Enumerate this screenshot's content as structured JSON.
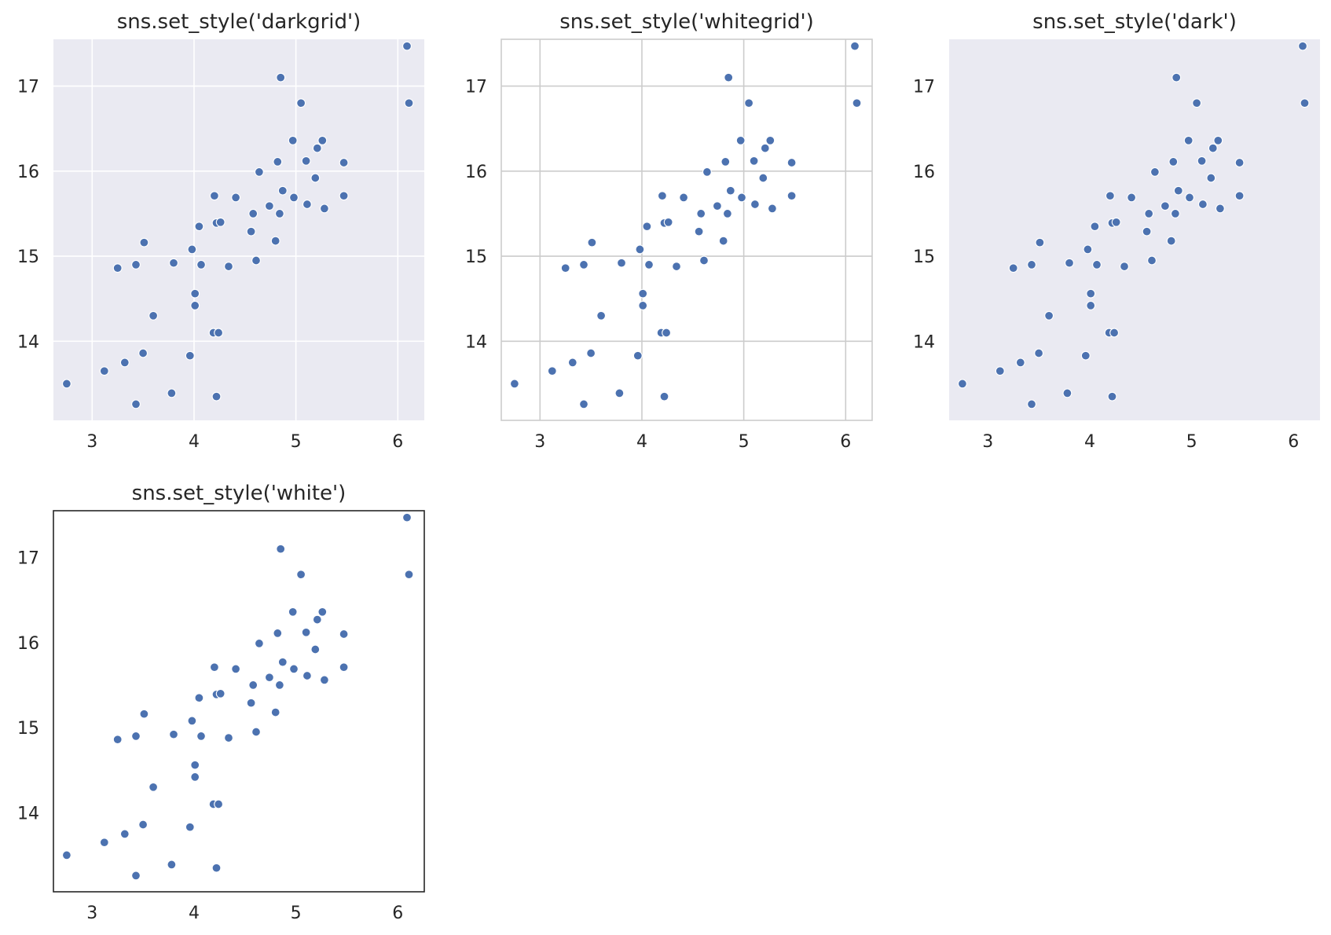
{
  "chart_data": [
    {
      "type": "scatter",
      "title": "sns.set_style('darkgrid')",
      "style": "darkgrid",
      "background": "#eaeaf2",
      "grid": true,
      "grid_color": "#ffffff",
      "spines": false,
      "point_color": "#4c72b0",
      "xlim": [
        2.62,
        6.26
      ],
      "ylim": [
        13.07,
        17.55
      ],
      "xticks": [
        3,
        4,
        5,
        6
      ],
      "yticks": [
        14,
        15,
        16,
        17
      ],
      "points": [
        [
          2.75,
          13.5
        ],
        [
          3.12,
          13.65
        ],
        [
          3.32,
          13.75
        ],
        [
          3.5,
          13.86
        ],
        [
          3.43,
          13.26
        ],
        [
          3.25,
          14.86
        ],
        [
          3.43,
          14.9
        ],
        [
          3.51,
          15.16
        ],
        [
          3.6,
          14.3
        ],
        [
          3.78,
          13.39
        ],
        [
          3.8,
          14.92
        ],
        [
          3.96,
          13.83
        ],
        [
          3.98,
          15.08
        ],
        [
          4.01,
          14.56
        ],
        [
          4.01,
          14.42
        ],
        [
          4.05,
          15.35
        ],
        [
          4.07,
          14.9
        ],
        [
          4.2,
          15.71
        ],
        [
          4.19,
          14.1
        ],
        [
          4.24,
          14.1
        ],
        [
          4.22,
          15.39
        ],
        [
          4.22,
          13.35
        ],
        [
          4.26,
          15.4
        ],
        [
          4.34,
          14.88
        ],
        [
          4.41,
          15.69
        ],
        [
          4.56,
          15.29
        ],
        [
          4.58,
          15.5
        ],
        [
          4.61,
          14.95
        ],
        [
          4.64,
          15.99
        ],
        [
          4.74,
          15.59
        ],
        [
          4.8,
          15.18
        ],
        [
          4.82,
          16.11
        ],
        [
          4.84,
          15.5
        ],
        [
          4.87,
          15.77
        ],
        [
          4.85,
          17.1
        ],
        [
          4.97,
          16.36
        ],
        [
          4.98,
          15.69
        ],
        [
          5.05,
          16.8
        ],
        [
          5.1,
          16.12
        ],
        [
          5.11,
          15.61
        ],
        [
          5.19,
          15.92
        ],
        [
          5.21,
          16.27
        ],
        [
          5.26,
          16.36
        ],
        [
          5.28,
          15.56
        ],
        [
          5.47,
          16.1
        ],
        [
          5.47,
          15.71
        ],
        [
          6.09,
          17.47
        ],
        [
          6.11,
          16.8
        ]
      ]
    },
    {
      "type": "scatter",
      "title": "sns.set_style('whitegrid')",
      "style": "whitegrid",
      "background": "#ffffff",
      "grid": true,
      "grid_color": "#cccccc",
      "spines": true,
      "spine_color": "#cccccc",
      "point_color": "#4c72b0",
      "xlim": [
        2.62,
        6.26
      ],
      "ylim": [
        13.07,
        17.55
      ],
      "xticks": [
        3,
        4,
        5,
        6
      ],
      "yticks": [
        14,
        15,
        16,
        17
      ],
      "points": [
        [
          2.75,
          13.5
        ],
        [
          3.12,
          13.65
        ],
        [
          3.32,
          13.75
        ],
        [
          3.5,
          13.86
        ],
        [
          3.43,
          13.26
        ],
        [
          3.25,
          14.86
        ],
        [
          3.43,
          14.9
        ],
        [
          3.51,
          15.16
        ],
        [
          3.6,
          14.3
        ],
        [
          3.78,
          13.39
        ],
        [
          3.8,
          14.92
        ],
        [
          3.96,
          13.83
        ],
        [
          3.98,
          15.08
        ],
        [
          4.01,
          14.56
        ],
        [
          4.01,
          14.42
        ],
        [
          4.05,
          15.35
        ],
        [
          4.07,
          14.9
        ],
        [
          4.2,
          15.71
        ],
        [
          4.19,
          14.1
        ],
        [
          4.24,
          14.1
        ],
        [
          4.22,
          15.39
        ],
        [
          4.22,
          13.35
        ],
        [
          4.26,
          15.4
        ],
        [
          4.34,
          14.88
        ],
        [
          4.41,
          15.69
        ],
        [
          4.56,
          15.29
        ],
        [
          4.58,
          15.5
        ],
        [
          4.61,
          14.95
        ],
        [
          4.64,
          15.99
        ],
        [
          4.74,
          15.59
        ],
        [
          4.8,
          15.18
        ],
        [
          4.82,
          16.11
        ],
        [
          4.84,
          15.5
        ],
        [
          4.87,
          15.77
        ],
        [
          4.85,
          17.1
        ],
        [
          4.97,
          16.36
        ],
        [
          4.98,
          15.69
        ],
        [
          5.05,
          16.8
        ],
        [
          5.1,
          16.12
        ],
        [
          5.11,
          15.61
        ],
        [
          5.19,
          15.92
        ],
        [
          5.21,
          16.27
        ],
        [
          5.26,
          16.36
        ],
        [
          5.28,
          15.56
        ],
        [
          5.47,
          16.1
        ],
        [
          5.47,
          15.71
        ],
        [
          6.09,
          17.47
        ],
        [
          6.11,
          16.8
        ]
      ]
    },
    {
      "type": "scatter",
      "title": "sns.set_style('dark')",
      "style": "dark",
      "background": "#eaeaf2",
      "grid": false,
      "spines": false,
      "point_color": "#4c72b0",
      "xlim": [
        2.62,
        6.26
      ],
      "ylim": [
        13.07,
        17.55
      ],
      "xticks": [
        3,
        4,
        5,
        6
      ],
      "yticks": [
        14,
        15,
        16,
        17
      ],
      "points": [
        [
          2.75,
          13.5
        ],
        [
          3.12,
          13.65
        ],
        [
          3.32,
          13.75
        ],
        [
          3.5,
          13.86
        ],
        [
          3.43,
          13.26
        ],
        [
          3.25,
          14.86
        ],
        [
          3.43,
          14.9
        ],
        [
          3.51,
          15.16
        ],
        [
          3.6,
          14.3
        ],
        [
          3.78,
          13.39
        ],
        [
          3.8,
          14.92
        ],
        [
          3.96,
          13.83
        ],
        [
          3.98,
          15.08
        ],
        [
          4.01,
          14.56
        ],
        [
          4.01,
          14.42
        ],
        [
          4.05,
          15.35
        ],
        [
          4.07,
          14.9
        ],
        [
          4.2,
          15.71
        ],
        [
          4.19,
          14.1
        ],
        [
          4.24,
          14.1
        ],
        [
          4.22,
          15.39
        ],
        [
          4.22,
          13.35
        ],
        [
          4.26,
          15.4
        ],
        [
          4.34,
          14.88
        ],
        [
          4.41,
          15.69
        ],
        [
          4.56,
          15.29
        ],
        [
          4.58,
          15.5
        ],
        [
          4.61,
          14.95
        ],
        [
          4.64,
          15.99
        ],
        [
          4.74,
          15.59
        ],
        [
          4.8,
          15.18
        ],
        [
          4.82,
          16.11
        ],
        [
          4.84,
          15.5
        ],
        [
          4.87,
          15.77
        ],
        [
          4.85,
          17.1
        ],
        [
          4.97,
          16.36
        ],
        [
          4.98,
          15.69
        ],
        [
          5.05,
          16.8
        ],
        [
          5.1,
          16.12
        ],
        [
          5.11,
          15.61
        ],
        [
          5.19,
          15.92
        ],
        [
          5.21,
          16.27
        ],
        [
          5.26,
          16.36
        ],
        [
          5.28,
          15.56
        ],
        [
          5.47,
          16.1
        ],
        [
          5.47,
          15.71
        ],
        [
          6.09,
          17.47
        ],
        [
          6.11,
          16.8
        ]
      ]
    },
    {
      "type": "scatter",
      "title": "sns.set_style('white')",
      "style": "white",
      "background": "#ffffff",
      "grid": false,
      "spines": true,
      "spine_color": "#262626",
      "point_color": "#4c72b0",
      "xlim": [
        2.62,
        6.26
      ],
      "ylim": [
        13.07,
        17.55
      ],
      "xticks": [
        3,
        4,
        5,
        6
      ],
      "yticks": [
        14,
        15,
        16,
        17
      ],
      "points": [
        [
          2.75,
          13.5
        ],
        [
          3.12,
          13.65
        ],
        [
          3.32,
          13.75
        ],
        [
          3.5,
          13.86
        ],
        [
          3.43,
          13.26
        ],
        [
          3.25,
          14.86
        ],
        [
          3.43,
          14.9
        ],
        [
          3.51,
          15.16
        ],
        [
          3.6,
          14.3
        ],
        [
          3.78,
          13.39
        ],
        [
          3.8,
          14.92
        ],
        [
          3.96,
          13.83
        ],
        [
          3.98,
          15.08
        ],
        [
          4.01,
          14.56
        ],
        [
          4.01,
          14.42
        ],
        [
          4.05,
          15.35
        ],
        [
          4.07,
          14.9
        ],
        [
          4.2,
          15.71
        ],
        [
          4.19,
          14.1
        ],
        [
          4.24,
          14.1
        ],
        [
          4.22,
          15.39
        ],
        [
          4.22,
          13.35
        ],
        [
          4.26,
          15.4
        ],
        [
          4.34,
          14.88
        ],
        [
          4.41,
          15.69
        ],
        [
          4.56,
          15.29
        ],
        [
          4.58,
          15.5
        ],
        [
          4.61,
          14.95
        ],
        [
          4.64,
          15.99
        ],
        [
          4.74,
          15.59
        ],
        [
          4.8,
          15.18
        ],
        [
          4.82,
          16.11
        ],
        [
          4.84,
          15.5
        ],
        [
          4.87,
          15.77
        ],
        [
          4.85,
          17.1
        ],
        [
          4.97,
          16.36
        ],
        [
          4.98,
          15.69
        ],
        [
          5.05,
          16.8
        ],
        [
          5.1,
          16.12
        ],
        [
          5.11,
          15.61
        ],
        [
          5.19,
          15.92
        ],
        [
          5.21,
          16.27
        ],
        [
          5.26,
          16.36
        ],
        [
          5.28,
          15.56
        ],
        [
          5.47,
          16.1
        ],
        [
          5.47,
          15.71
        ],
        [
          6.09,
          17.47
        ],
        [
          6.11,
          16.8
        ]
      ]
    }
  ]
}
